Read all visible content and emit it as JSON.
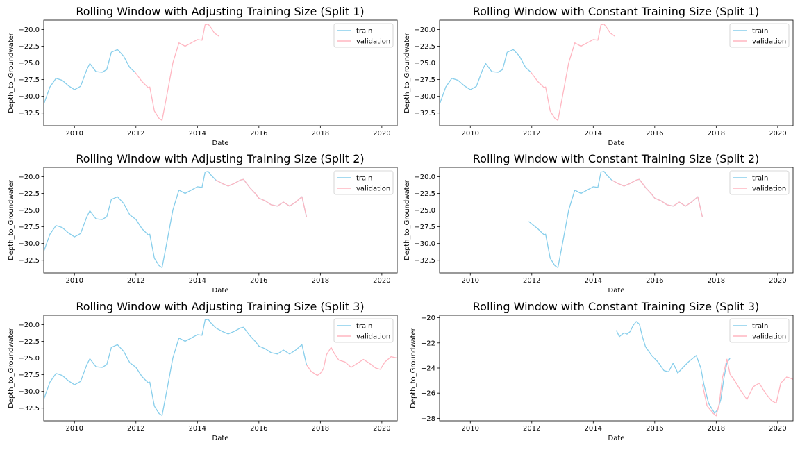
{
  "colors": {
    "train": "#87ceeb",
    "validation": "#ffb6c1",
    "frame": "#000000",
    "legend_border": "#cccccc"
  },
  "chart_data": [
    {
      "type": "line",
      "title": "Rolling Window with Adjusting Training Size (Split 1)",
      "xlabel": "Date",
      "ylabel": "Depth_to_Groundwater",
      "xlim": [
        2009.0,
        2020.5
      ],
      "ylim": [
        -34.4,
        -18.6
      ],
      "xticks": [
        2010,
        2012,
        2014,
        2016,
        2018,
        2020
      ],
      "xtick_labels": [
        "2010",
        "2012",
        "2014",
        "2016",
        "2018",
        "2020"
      ],
      "yticks": [
        -20.0,
        -22.5,
        -25.0,
        -27.5,
        -30.0,
        -32.5
      ],
      "ytick_labels": [
        "−20.0",
        "−22.5",
        "−25.0",
        "−27.5",
        "−30.0",
        "−32.5"
      ],
      "legend": [
        "train",
        "validation"
      ],
      "legend_position": "upper right",
      "grid": false,
      "series": [
        {
          "name": "train",
          "x": [
            2009.0,
            2009.2,
            2009.4,
            2009.6,
            2009.8,
            2010.0,
            2010.2,
            2010.4,
            2010.5,
            2010.7,
            2010.9,
            2011.05,
            2011.2,
            2011.4,
            2011.6,
            2011.8,
            2011.97
          ],
          "y": [
            -31.2,
            -28.6,
            -27.3,
            -27.6,
            -28.4,
            -29.0,
            -28.5,
            -26.0,
            -25.1,
            -26.3,
            -26.4,
            -26.0,
            -23.4,
            -23.0,
            -24.0,
            -25.7,
            -26.4
          ]
        },
        {
          "name": "validation",
          "x": [
            2011.97,
            2012.2,
            2012.4,
            2012.45,
            2012.6,
            2012.75,
            2012.85,
            2013.0,
            2013.2,
            2013.4,
            2013.6,
            2013.8,
            2014.0,
            2014.15,
            2014.25,
            2014.35,
            2014.45,
            2014.55,
            2014.7
          ],
          "y": [
            -26.4,
            -27.8,
            -28.7,
            -28.6,
            -32.2,
            -33.3,
            -33.6,
            -30.0,
            -25.0,
            -22.0,
            -22.5,
            -22.0,
            -21.5,
            -21.6,
            -19.3,
            -19.2,
            -19.8,
            -20.5,
            -21.0
          ]
        }
      ]
    },
    {
      "type": "line",
      "title": "Rolling Window with Constant Training Size (Split 1)",
      "xlabel": "Date",
      "ylabel": "Depth_to_Groundwater",
      "xlim": [
        2009.0,
        2020.5
      ],
      "ylim": [
        -34.4,
        -18.6
      ],
      "xticks": [
        2010,
        2012,
        2014,
        2016,
        2018,
        2020
      ],
      "xtick_labels": [
        "2010",
        "2012",
        "2014",
        "2016",
        "2018",
        "2020"
      ],
      "yticks": [
        -20.0,
        -22.5,
        -25.0,
        -27.5,
        -30.0,
        -32.5
      ],
      "ytick_labels": [
        "−20.0",
        "−22.5",
        "−25.0",
        "−27.5",
        "−30.0",
        "−32.5"
      ],
      "legend": [
        "train",
        "validation"
      ],
      "legend_position": "upper right",
      "grid": false,
      "series": [
        {
          "name": "train",
          "x": [
            2009.0,
            2009.2,
            2009.4,
            2009.6,
            2009.8,
            2010.0,
            2010.2,
            2010.4,
            2010.5,
            2010.7,
            2010.9,
            2011.05,
            2011.2,
            2011.4,
            2011.6,
            2011.8,
            2011.97
          ],
          "y": [
            -31.2,
            -28.6,
            -27.3,
            -27.6,
            -28.4,
            -29.0,
            -28.5,
            -26.0,
            -25.1,
            -26.3,
            -26.4,
            -26.0,
            -23.4,
            -23.0,
            -24.0,
            -25.7,
            -26.4
          ]
        },
        {
          "name": "validation",
          "x": [
            2011.97,
            2012.2,
            2012.4,
            2012.45,
            2012.6,
            2012.75,
            2012.85,
            2013.0,
            2013.2,
            2013.4,
            2013.6,
            2013.8,
            2014.0,
            2014.15,
            2014.25,
            2014.35,
            2014.45,
            2014.55,
            2014.7
          ],
          "y": [
            -26.4,
            -27.8,
            -28.7,
            -28.6,
            -32.2,
            -33.3,
            -33.6,
            -30.0,
            -25.0,
            -22.0,
            -22.5,
            -22.0,
            -21.5,
            -21.6,
            -19.3,
            -19.2,
            -19.8,
            -20.5,
            -21.0
          ]
        }
      ]
    },
    {
      "type": "line",
      "title": "Rolling Window with Adjusting Training Size (Split 2)",
      "xlabel": "Date",
      "ylabel": "Depth_to_Groundwater",
      "xlim": [
        2009.0,
        2020.5
      ],
      "ylim": [
        -34.4,
        -18.6
      ],
      "xticks": [
        2010,
        2012,
        2014,
        2016,
        2018,
        2020
      ],
      "xtick_labels": [
        "2010",
        "2012",
        "2014",
        "2016",
        "2018",
        "2020"
      ],
      "yticks": [
        -20.0,
        -22.5,
        -25.0,
        -27.5,
        -30.0,
        -32.5
      ],
      "ytick_labels": [
        "−20.0",
        "−22.5",
        "−25.0",
        "−27.5",
        "−30.0",
        "−32.5"
      ],
      "legend": [
        "train",
        "validation"
      ],
      "legend_position": "upper right",
      "grid": false,
      "series": [
        {
          "name": "train",
          "x": [
            2009.0,
            2009.2,
            2009.4,
            2009.6,
            2009.8,
            2010.0,
            2010.2,
            2010.4,
            2010.5,
            2010.7,
            2010.9,
            2011.05,
            2011.2,
            2011.4,
            2011.6,
            2011.8,
            2012.0,
            2012.2,
            2012.4,
            2012.45,
            2012.6,
            2012.75,
            2012.85,
            2013.0,
            2013.2,
            2013.4,
            2013.6,
            2013.8,
            2014.0,
            2014.15,
            2014.25,
            2014.35,
            2014.45,
            2014.6,
            2014.8,
            2015.0,
            2015.2,
            2015.4,
            2015.5,
            2015.7,
            2015.9,
            2016.0,
            2016.2,
            2016.4,
            2016.6,
            2016.8,
            2017.0,
            2017.2,
            2017.4,
            2017.55
          ],
          "y": [
            -31.2,
            -28.6,
            -27.3,
            -27.6,
            -28.4,
            -29.0,
            -28.5,
            -26.0,
            -25.1,
            -26.3,
            -26.4,
            -26.0,
            -23.4,
            -23.0,
            -24.0,
            -25.7,
            -26.4,
            -27.8,
            -28.7,
            -28.6,
            -32.2,
            -33.3,
            -33.6,
            -30.0,
            -25.0,
            -22.0,
            -22.5,
            -22.0,
            -21.5,
            -21.6,
            -19.3,
            -19.2,
            -19.8,
            -20.5,
            -21.0,
            -21.4,
            -21.0,
            -20.5,
            -20.4,
            -21.6,
            -22.6,
            -23.2,
            -23.6,
            -24.2,
            -24.4,
            -23.8,
            -24.4,
            -23.8,
            -23.0,
            -26.0
          ]
        },
        {
          "name": "validation",
          "x": [
            2014.6,
            2014.8,
            2015.0,
            2015.2,
            2015.4,
            2015.5,
            2015.7,
            2015.9,
            2016.0,
            2016.2,
            2016.4,
            2016.6,
            2016.8,
            2017.0,
            2017.2,
            2017.4,
            2017.55
          ],
          "y": [
            -20.5,
            -21.0,
            -21.4,
            -21.0,
            -20.5,
            -20.4,
            -21.6,
            -22.6,
            -23.2,
            -23.6,
            -24.2,
            -24.4,
            -23.8,
            -24.4,
            -23.8,
            -23.0,
            -26.0
          ]
        }
      ]
    },
    {
      "type": "line",
      "title": "Rolling Window with Constant Training Size (Split 2)",
      "xlabel": "Date",
      "ylabel": "Depth_to_Groundwater",
      "xlim": [
        2009.0,
        2020.5
      ],
      "ylim": [
        -34.4,
        -18.6
      ],
      "xticks": [
        2010,
        2012,
        2014,
        2016,
        2018,
        2020
      ],
      "xtick_labels": [
        "2010",
        "2012",
        "2014",
        "2016",
        "2018",
        "2020"
      ],
      "yticks": [
        -20.0,
        -22.5,
        -25.0,
        -27.5,
        -30.0,
        -32.5
      ],
      "ytick_labels": [
        "−20.0",
        "−22.5",
        "−25.0",
        "−27.5",
        "−30.0",
        "−32.5"
      ],
      "legend": [
        "train",
        "validation"
      ],
      "legend_position": "upper right",
      "grid": false,
      "series": [
        {
          "name": "train",
          "x": [
            2011.9,
            2012.2,
            2012.4,
            2012.45,
            2012.6,
            2012.75,
            2012.85,
            2013.0,
            2013.2,
            2013.4,
            2013.6,
            2013.8,
            2014.0,
            2014.15,
            2014.25,
            2014.35,
            2014.45,
            2014.6,
            2014.8,
            2015.0,
            2015.2,
            2015.4,
            2015.5,
            2015.7,
            2015.9,
            2016.0,
            2016.2,
            2016.4,
            2016.6,
            2016.8,
            2017.0,
            2017.2,
            2017.4,
            2017.55
          ],
          "y": [
            -26.7,
            -27.8,
            -28.7,
            -28.6,
            -32.2,
            -33.3,
            -33.6,
            -30.0,
            -25.0,
            -22.0,
            -22.5,
            -22.0,
            -21.5,
            -21.6,
            -19.3,
            -19.2,
            -19.8,
            -20.5,
            -21.0,
            -21.4,
            -21.0,
            -20.5,
            -20.4,
            -21.6,
            -22.6,
            -23.2,
            -23.6,
            -24.2,
            -24.4,
            -23.8,
            -24.4,
            -23.8,
            -23.0,
            -26.0
          ]
        },
        {
          "name": "validation",
          "x": [
            2014.6,
            2014.8,
            2015.0,
            2015.2,
            2015.4,
            2015.5,
            2015.7,
            2015.9,
            2016.0,
            2016.2,
            2016.4,
            2016.6,
            2016.8,
            2017.0,
            2017.2,
            2017.4,
            2017.55
          ],
          "y": [
            -20.5,
            -21.0,
            -21.4,
            -21.0,
            -20.5,
            -20.4,
            -21.6,
            -22.6,
            -23.2,
            -23.6,
            -24.2,
            -24.4,
            -23.8,
            -24.4,
            -23.8,
            -23.0,
            -26.0
          ]
        }
      ]
    },
    {
      "type": "line",
      "title": "Rolling Window with Adjusting Training Size (Split 3)",
      "xlabel": "Date",
      "ylabel": "Depth_to_Groundwater",
      "xlim": [
        2009.0,
        2020.5
      ],
      "ylim": [
        -34.4,
        -18.6
      ],
      "xticks": [
        2010,
        2012,
        2014,
        2016,
        2018,
        2020
      ],
      "xtick_labels": [
        "2010",
        "2012",
        "2014",
        "2016",
        "2018",
        "2020"
      ],
      "yticks": [
        -20.0,
        -22.5,
        -25.0,
        -27.5,
        -30.0,
        -32.5
      ],
      "ytick_labels": [
        "−20.0",
        "−22.5",
        "−25.0",
        "−27.5",
        "−30.0",
        "−32.5"
      ],
      "legend": [
        "train",
        "validation"
      ],
      "legend_position": "upper right",
      "grid": false,
      "series": [
        {
          "name": "train",
          "x": [
            2009.0,
            2009.2,
            2009.4,
            2009.6,
            2009.8,
            2010.0,
            2010.2,
            2010.4,
            2010.5,
            2010.7,
            2010.9,
            2011.05,
            2011.2,
            2011.4,
            2011.6,
            2011.8,
            2012.0,
            2012.2,
            2012.4,
            2012.45,
            2012.6,
            2012.75,
            2012.85,
            2013.0,
            2013.2,
            2013.4,
            2013.6,
            2013.8,
            2014.0,
            2014.15,
            2014.25,
            2014.35,
            2014.45,
            2014.6,
            2014.8,
            2015.0,
            2015.2,
            2015.4,
            2015.5,
            2015.7,
            2015.9,
            2016.0,
            2016.2,
            2016.4,
            2016.6,
            2016.8,
            2017.0,
            2017.2,
            2017.4,
            2017.55
          ],
          "y": [
            -31.2,
            -28.6,
            -27.3,
            -27.6,
            -28.4,
            -29.0,
            -28.5,
            -26.0,
            -25.1,
            -26.3,
            -26.4,
            -26.0,
            -23.4,
            -23.0,
            -24.0,
            -25.7,
            -26.4,
            -27.8,
            -28.7,
            -28.6,
            -32.2,
            -33.3,
            -33.6,
            -30.0,
            -25.0,
            -22.0,
            -22.5,
            -22.0,
            -21.5,
            -21.6,
            -19.3,
            -19.2,
            -19.8,
            -20.5,
            -21.0,
            -21.4,
            -21.0,
            -20.5,
            -20.4,
            -21.6,
            -22.6,
            -23.2,
            -23.6,
            -24.2,
            -24.4,
            -23.8,
            -24.4,
            -23.8,
            -23.0,
            -26.0
          ]
        },
        {
          "name": "validation",
          "x": [
            2017.55,
            2017.7,
            2017.9,
            2018.0,
            2018.1,
            2018.2,
            2018.35,
            2018.45,
            2018.6,
            2018.8,
            2019.0,
            2019.2,
            2019.4,
            2019.6,
            2019.8,
            2019.95,
            2020.1,
            2020.3,
            2020.5
          ],
          "y": [
            -26.0,
            -27.0,
            -27.6,
            -27.3,
            -26.6,
            -24.5,
            -23.4,
            -24.3,
            -25.3,
            -25.6,
            -26.4,
            -25.8,
            -25.2,
            -25.8,
            -26.5,
            -26.7,
            -25.6,
            -24.8,
            -25.0
          ]
        }
      ]
    },
    {
      "type": "line",
      "title": "Rolling Window with Constant Training Size (Split 3)",
      "xlabel": "Date",
      "ylabel": "Depth_to_Groundwater",
      "xlim": [
        2009.0,
        2020.5
      ],
      "ylim": [
        -28.2,
        -19.8
      ],
      "xticks": [
        2010,
        2012,
        2014,
        2016,
        2018,
        2020
      ],
      "xtick_labels": [
        "2010",
        "2012",
        "2014",
        "2016",
        "2018",
        "2020"
      ],
      "yticks": [
        -20,
        -22,
        -24,
        -26,
        -28
      ],
      "ytick_labels": [
        "−20",
        "−22",
        "−24",
        "−26",
        "−28"
      ],
      "legend": [
        "train",
        "validation"
      ],
      "legend_position": "upper right",
      "grid": false,
      "series": [
        {
          "name": "train",
          "x": [
            2014.75,
            2014.85,
            2015.0,
            2015.1,
            2015.2,
            2015.3,
            2015.4,
            2015.5,
            2015.6,
            2015.7,
            2015.9,
            2016.1,
            2016.3,
            2016.45,
            2016.6,
            2016.75,
            2016.9,
            2017.1,
            2017.35,
            2017.5,
            2017.6,
            2017.75,
            2017.85,
            2017.95,
            2018.05,
            2018.15,
            2018.25,
            2018.35,
            2018.45
          ],
          "y": [
            -21.0,
            -21.5,
            -21.2,
            -21.3,
            -21.1,
            -20.6,
            -20.3,
            -20.5,
            -21.5,
            -22.3,
            -23.0,
            -23.5,
            -24.2,
            -24.3,
            -23.6,
            -24.4,
            -24.0,
            -23.5,
            -23.0,
            -24.0,
            -25.3,
            -26.8,
            -27.2,
            -27.6,
            -27.3,
            -26.5,
            -24.8,
            -23.6,
            -23.2
          ]
        },
        {
          "name": "validation",
          "x": [
            2017.55,
            2017.7,
            2017.9,
            2018.0,
            2018.1,
            2018.2,
            2018.35,
            2018.45,
            2018.6,
            2018.8,
            2019.0,
            2019.2,
            2019.4,
            2019.6,
            2019.8,
            2019.95,
            2020.1,
            2020.3,
            2020.5
          ],
          "y": [
            -25.3,
            -27.0,
            -27.6,
            -27.8,
            -26.8,
            -24.8,
            -23.3,
            -24.5,
            -25.0,
            -25.8,
            -26.5,
            -25.5,
            -25.2,
            -26.0,
            -26.6,
            -26.8,
            -25.2,
            -24.7,
            -24.9
          ]
        }
      ]
    }
  ]
}
